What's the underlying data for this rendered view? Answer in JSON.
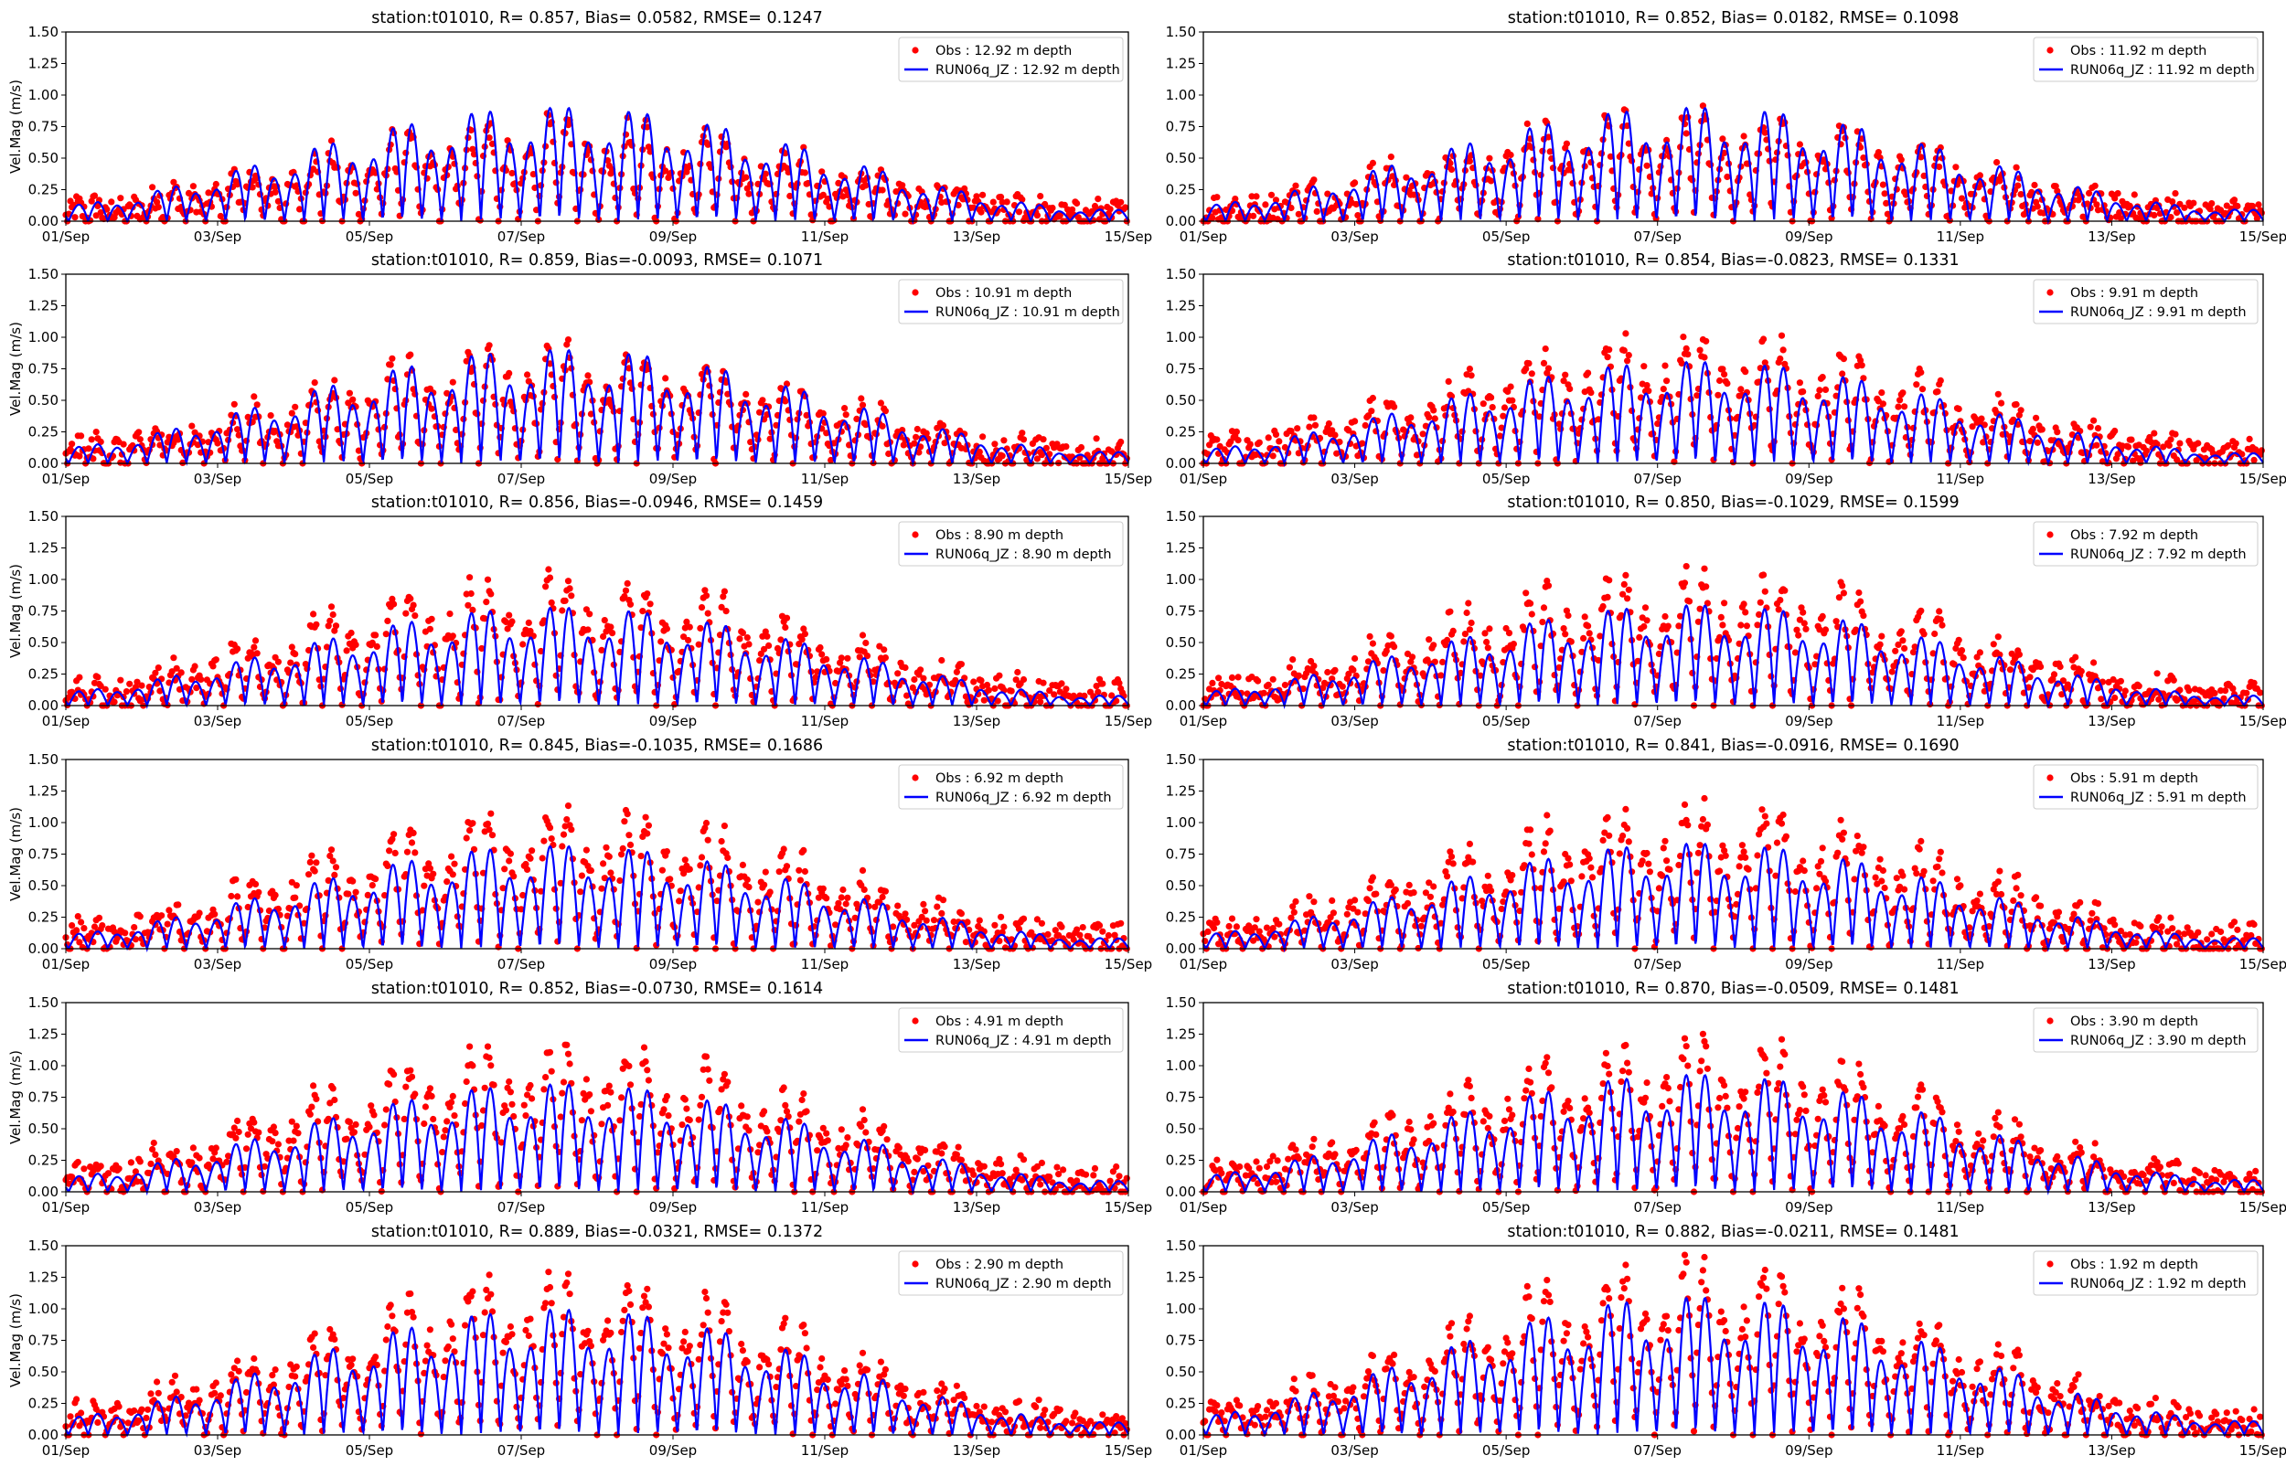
{
  "colors": {
    "obs": "#ff0000",
    "model": "#0000ff",
    "axis": "#000000",
    "legend_border": "#cccccc"
  },
  "chart_data": [
    {
      "type": "line+scatter",
      "title": "station:t01010, R= 0.857, Bias= 0.0582, RMSE= 0.1247",
      "legend": [
        "Obs : 12.92 m depth",
        "RUN06q_JZ : 12.92 m depth"
      ],
      "legend_position": "top-right",
      "depth_m": 12.92,
      "R": 0.857,
      "bias": 0.0582,
      "rmse": 0.1247,
      "obs_peak_scale": 0.82,
      "model_peak_scale": 0.95
    },
    {
      "type": "line+scatter",
      "title": "station:t01010, R= 0.852, Bias= 0.0182, RMSE= 0.1098",
      "legend": [
        "Obs : 11.92 m depth",
        "RUN06q_JZ : 11.92 m depth"
      ],
      "legend_position": "top-right",
      "depth_m": 11.92,
      "R": 0.852,
      "bias": 0.0182,
      "rmse": 0.1098,
      "obs_peak_scale": 0.88,
      "model_peak_scale": 0.95
    },
    {
      "type": "line+scatter",
      "title": "station:t01010, R= 0.859, Bias=-0.0093, RMSE= 0.1071",
      "legend": [
        "Obs : 10.91 m depth",
        "RUN06q_JZ : 10.91 m depth"
      ],
      "legend_position": "top-right",
      "depth_m": 10.91,
      "R": 0.859,
      "bias": -0.0093,
      "rmse": 0.1071,
      "obs_peak_scale": 0.95,
      "model_peak_scale": 0.95
    },
    {
      "type": "line+scatter",
      "title": "station:t01010, R= 0.854, Bias=-0.0823, RMSE= 0.1331",
      "legend": [
        "Obs : 9.91 m depth",
        "RUN06q_JZ : 9.91 m depth"
      ],
      "legend_position": "top-right",
      "depth_m": 9.91,
      "R": 0.854,
      "bias": -0.0823,
      "rmse": 0.1331,
      "obs_peak_scale": 1.02,
      "model_peak_scale": 0.85
    },
    {
      "type": "line+scatter",
      "title": "station:t01010, R= 0.856, Bias=-0.0946, RMSE= 0.1459",
      "legend": [
        "Obs : 8.90 m depth",
        "RUN06q_JZ : 8.90 m depth"
      ],
      "legend_position": "top-right",
      "depth_m": 8.9,
      "R": 0.856,
      "bias": -0.0946,
      "rmse": 0.1459,
      "obs_peak_scale": 1.05,
      "model_peak_scale": 0.82
    },
    {
      "type": "line+scatter",
      "title": "station:t01010, R= 0.850, Bias=-0.1029, RMSE= 0.1599",
      "legend": [
        "Obs : 7.92 m depth",
        "RUN06q_JZ : 7.92 m depth"
      ],
      "legend_position": "top-right",
      "depth_m": 7.92,
      "R": 0.85,
      "bias": -0.1029,
      "rmse": 0.1599,
      "obs_peak_scale": 1.1,
      "model_peak_scale": 0.84
    },
    {
      "type": "line+scatter",
      "title": "station:t01010, R= 0.845, Bias=-0.1035, RMSE= 0.1686",
      "legend": [
        "Obs : 6.92 m depth",
        "RUN06q_JZ : 6.92 m depth"
      ],
      "legend_position": "top-right",
      "depth_m": 6.92,
      "R": 0.845,
      "bias": -0.1035,
      "rmse": 0.1686,
      "obs_peak_scale": 1.15,
      "model_peak_scale": 0.86
    },
    {
      "type": "line+scatter",
      "title": "station:t01010, R= 0.841, Bias=-0.0916, RMSE= 0.1690",
      "legend": [
        "Obs : 5.91 m depth",
        "RUN06q_JZ : 5.91 m depth"
      ],
      "legend_position": "top-right",
      "depth_m": 5.91,
      "R": 0.841,
      "bias": -0.0916,
      "rmse": 0.169,
      "obs_peak_scale": 1.18,
      "model_peak_scale": 0.88
    },
    {
      "type": "line+scatter",
      "title": "station:t01010, R= 0.852, Bias=-0.0730, RMSE= 0.1614",
      "legend": [
        "Obs : 4.91 m depth",
        "RUN06q_JZ : 4.91 m depth"
      ],
      "legend_position": "top-right",
      "depth_m": 4.91,
      "R": 0.852,
      "bias": -0.073,
      "rmse": 0.1614,
      "obs_peak_scale": 1.22,
      "model_peak_scale": 0.9
    },
    {
      "type": "line+scatter",
      "title": "station:t01010, R= 0.870, Bias=-0.0509, RMSE= 0.1481",
      "legend": [
        "Obs : 3.90 m depth",
        "RUN06q_JZ : 3.90 m depth"
      ],
      "legend_position": "top-right",
      "depth_m": 3.9,
      "R": 0.87,
      "bias": -0.0509,
      "rmse": 0.1481,
      "obs_peak_scale": 1.25,
      "model_peak_scale": 0.98
    },
    {
      "type": "line+scatter",
      "title": "station:t01010, R= 0.889, Bias=-0.0321, RMSE= 0.1372",
      "legend": [
        "Obs : 2.90 m depth",
        "RUN06q_JZ : 2.90 m depth"
      ],
      "legend_position": "top-right",
      "depth_m": 2.9,
      "R": 0.889,
      "bias": -0.0321,
      "rmse": 0.1372,
      "obs_peak_scale": 1.3,
      "model_peak_scale": 1.05
    },
    {
      "type": "line+scatter",
      "title": "station:t01010, R= 0.882, Bias=-0.0211, RMSE= 0.1481",
      "legend": [
        "Obs : 1.92 m depth",
        "RUN06q_JZ : 1.92 m depth"
      ],
      "legend_position": "top-right",
      "depth_m": 1.92,
      "R": 0.882,
      "bias": -0.0211,
      "rmse": 0.1481,
      "obs_peak_scale": 1.4,
      "model_peak_scale": 1.15
    }
  ],
  "axes": {
    "ylabel": "Vel.Mag (m/s)",
    "ylim": [
      0,
      1.5
    ],
    "yticks": [
      "0.00",
      "0.25",
      "0.50",
      "0.75",
      "1.00",
      "1.25",
      "1.50"
    ],
    "xlim_days": [
      1,
      15
    ],
    "xticks": [
      "01/Sep",
      "03/Sep",
      "05/Sep",
      "07/Sep",
      "09/Sep",
      "11/Sep",
      "13/Sep",
      "15/Sep"
    ]
  }
}
